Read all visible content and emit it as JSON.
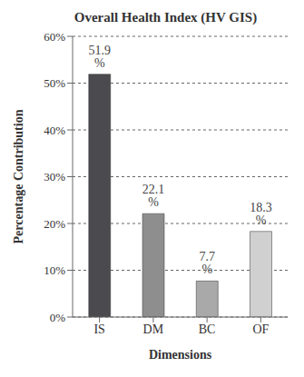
{
  "chart_data": {
    "type": "bar",
    "title": "Overall Health Index (HV GIS)",
    "x_label": "Dimensions",
    "y_label": "Percentage Contribution",
    "categories": [
      "IS",
      "DM",
      "BC",
      "OF"
    ],
    "values": [
      51.9,
      22.1,
      7.7,
      18.3
    ],
    "value_labels": [
      "51.9 %",
      "22.1 %",
      "7.7 %",
      "18.3 %"
    ],
    "colors": [
      "#4a4a4f",
      "#8e8e8e",
      "#a9a9a9",
      "#d0d0d0"
    ],
    "ylim": [
      0,
      60
    ],
    "yticks": [
      {
        "value": 0,
        "label": "0%"
      },
      {
        "value": 10,
        "label": "10%"
      },
      {
        "value": 20,
        "label": "20%"
      },
      {
        "value": 30,
        "label": "30%"
      },
      {
        "value": 40,
        "label": "40%"
      },
      {
        "value": 50,
        "label": "50%"
      },
      {
        "value": 60,
        "label": "60%"
      }
    ],
    "grid": true,
    "data_labels": true
  }
}
